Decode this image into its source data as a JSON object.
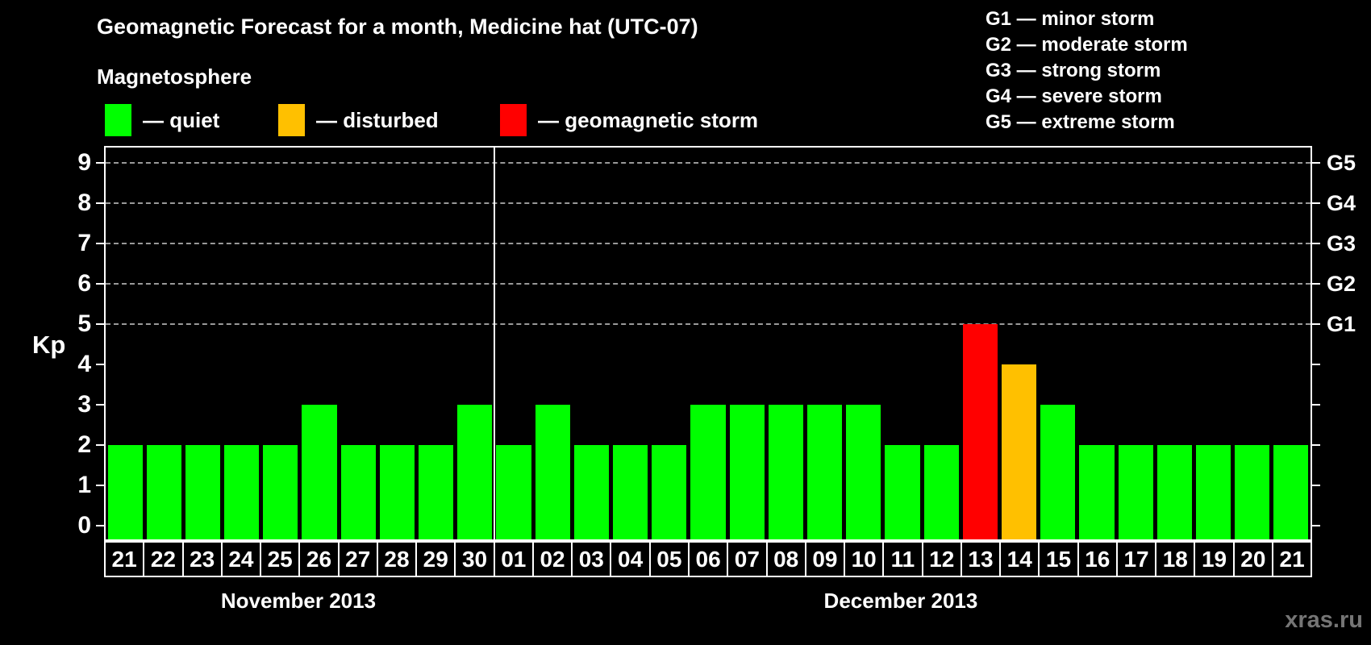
{
  "title": "Geomagnetic Forecast for a month, Medicine hat (UTC-07)",
  "legend": {
    "heading": "Magnetosphere",
    "items": [
      {
        "key": "quiet",
        "label": "— quiet",
        "color": "#00ff00"
      },
      {
        "key": "disturbed",
        "label": "— disturbed",
        "color": "#ffc000"
      },
      {
        "key": "storm",
        "label": "— geomagnetic storm",
        "color": "#ff0000"
      }
    ]
  },
  "storm_scale": [
    {
      "label": "G1 — minor storm"
    },
    {
      "label": "G2 — moderate storm"
    },
    {
      "label": "G3 — strong storm"
    },
    {
      "label": "G4 — severe storm"
    },
    {
      "label": "G5 — extreme storm"
    }
  ],
  "watermark": "xras.ru",
  "chart_data": {
    "type": "bar",
    "title": "Geomagnetic Forecast for a month, Medicine hat (UTC-07)",
    "ylabel": "Kp",
    "ylim": [
      0,
      9
    ],
    "y_ticks": [
      0,
      1,
      2,
      3,
      4,
      5,
      6,
      7,
      8,
      9
    ],
    "gridlines_at": [
      5,
      6,
      7,
      8,
      9
    ],
    "grid": true,
    "right_axis_labels": [
      {
        "value": 5,
        "label": "G1"
      },
      {
        "value": 6,
        "label": "G2"
      },
      {
        "value": 7,
        "label": "G3"
      },
      {
        "value": 8,
        "label": "G4"
      },
      {
        "value": 9,
        "label": "G5"
      }
    ],
    "color_rules": {
      "quiet_max": 3,
      "disturbed": 4,
      "storm_min": 5
    },
    "colors": {
      "quiet": "#00ff00",
      "disturbed": "#ffc000",
      "storm": "#ff0000"
    },
    "groups": [
      {
        "month": "November 2013",
        "categories": [
          "21",
          "22",
          "23",
          "24",
          "25",
          "26",
          "27",
          "28",
          "29",
          "30"
        ],
        "values": [
          2,
          2,
          2,
          2,
          2,
          3,
          2,
          2,
          2,
          3
        ]
      },
      {
        "month": "December 2013",
        "categories": [
          "01",
          "02",
          "03",
          "04",
          "05",
          "06",
          "07",
          "08",
          "09",
          "10",
          "11",
          "12",
          "13",
          "14",
          "15",
          "16",
          "17",
          "18",
          "19",
          "20",
          "21"
        ],
        "values": [
          2,
          3,
          2,
          2,
          2,
          3,
          3,
          3,
          3,
          3,
          2,
          2,
          5,
          4,
          3,
          2,
          2,
          2,
          2,
          2,
          2
        ]
      }
    ]
  }
}
